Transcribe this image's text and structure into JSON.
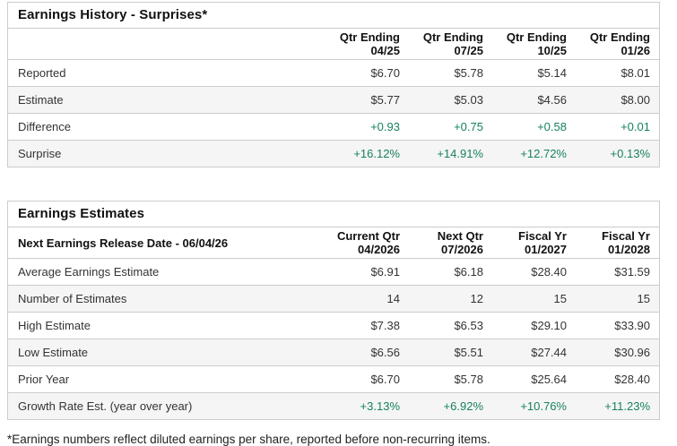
{
  "colors": {
    "accent_green": "#17825a",
    "border": "#cccccc",
    "row_alt_bg": "#f5f5f5",
    "heading_text": "#111111",
    "body_text": "#333333"
  },
  "surprises_table": {
    "title": "Earnings History - Surprises*",
    "columns": [
      "Qtr Ending\n04/25",
      "Qtr Ending\n07/25",
      "Qtr Ending\n10/25",
      "Qtr Ending\n01/26"
    ],
    "rows": [
      {
        "label": "Reported",
        "green": false,
        "values": [
          "$6.70",
          "$5.78",
          "$5.14",
          "$8.01"
        ]
      },
      {
        "label": "Estimate",
        "green": false,
        "values": [
          "$5.77",
          "$5.03",
          "$4.56",
          "$8.00"
        ]
      },
      {
        "label": "Difference",
        "green": true,
        "values": [
          "+0.93",
          "+0.75",
          "+0.58",
          "+0.01"
        ]
      },
      {
        "label": "Surprise",
        "green": true,
        "values": [
          "+16.12%",
          "+14.91%",
          "+12.72%",
          "+0.13%"
        ]
      }
    ]
  },
  "estimates_table": {
    "title": "Earnings Estimates",
    "header_label": "Next Earnings Release Date - 06/04/26",
    "columns": [
      "Current Qtr\n04/2026",
      "Next Qtr\n07/2026",
      "Fiscal Yr\n01/2027",
      "Fiscal Yr\n01/2028"
    ],
    "rows": [
      {
        "label": "Average Earnings Estimate",
        "green": false,
        "values": [
          "$6.91",
          "$6.18",
          "$28.40",
          "$31.59"
        ]
      },
      {
        "label": "Number of Estimates",
        "green": false,
        "values": [
          "14",
          "12",
          "15",
          "15"
        ]
      },
      {
        "label": "High Estimate",
        "green": false,
        "values": [
          "$7.38",
          "$6.53",
          "$29.10",
          "$33.90"
        ]
      },
      {
        "label": "Low Estimate",
        "green": false,
        "values": [
          "$6.56",
          "$5.51",
          "$27.44",
          "$30.96"
        ]
      },
      {
        "label": "Prior Year",
        "green": false,
        "values": [
          "$6.70",
          "$5.78",
          "$25.64",
          "$28.40"
        ]
      },
      {
        "label": "Growth Rate Est. (year over year)",
        "green": true,
        "values": [
          "+3.13%",
          "+6.92%",
          "+10.76%",
          "+11.23%"
        ]
      }
    ]
  },
  "footnote": "*Earnings numbers reflect diluted earnings per share, reported before non-recurring items."
}
